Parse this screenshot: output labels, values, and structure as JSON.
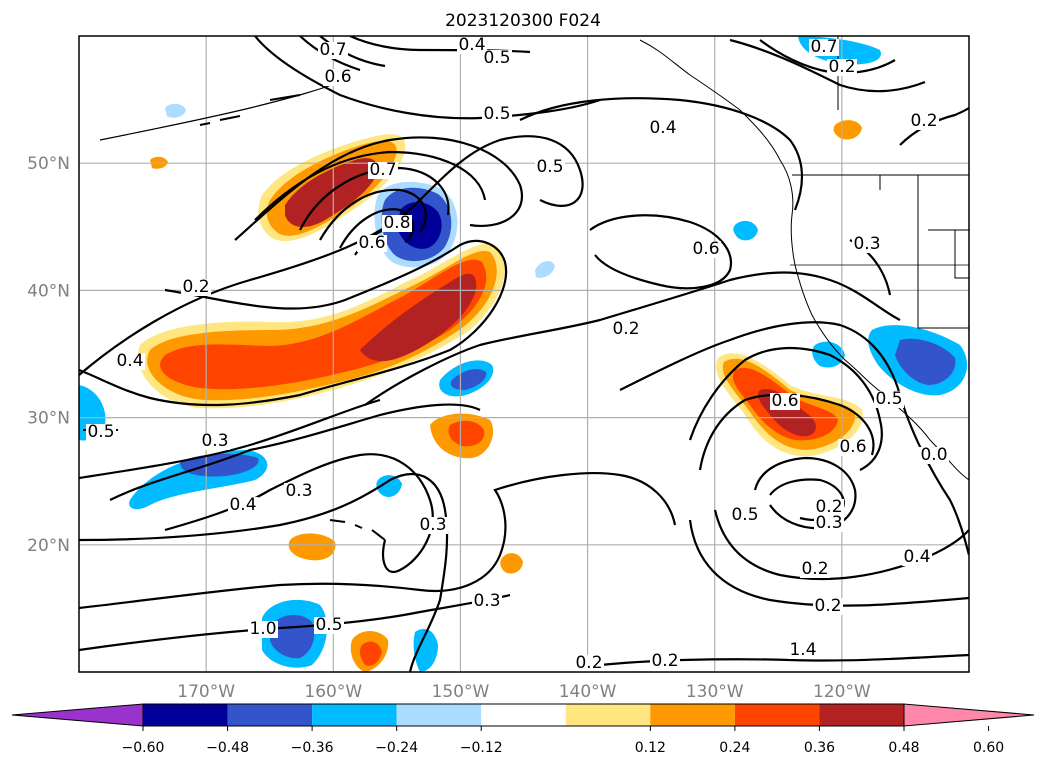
{
  "title": "2023120300 F024",
  "map": {
    "lon_range": [
      -180,
      -110
    ],
    "lat_range": [
      10,
      60
    ],
    "lon_ticks": [
      {
        "value": -170,
        "label": "170°W"
      },
      {
        "value": -160,
        "label": "160°W"
      },
      {
        "value": -150,
        "label": "150°W"
      },
      {
        "value": -140,
        "label": "140°W"
      },
      {
        "value": -130,
        "label": "130°W"
      },
      {
        "value": -120,
        "label": "120°W"
      }
    ],
    "lat_ticks": [
      {
        "value": 50,
        "label": "50°N"
      },
      {
        "value": 40,
        "label": "40°N"
      },
      {
        "value": 30,
        "label": "30°N"
      },
      {
        "value": 20,
        "label": "20°N"
      }
    ],
    "grid": true,
    "contour_labels": [
      "0.4",
      "0.5",
      "0.5",
      "0.7",
      "0.6",
      "0.4",
      "0.5",
      "0.7",
      "0.8",
      "0.6",
      "0.6",
      "0.3",
      "0.2",
      "0.4",
      "0.2",
      "0.3",
      "0.3",
      "0.4",
      "0.3",
      "0.3",
      "0.6",
      "0.6",
      "0.5",
      "0.2",
      "0.3",
      "0.5",
      "0.2",
      "0.4",
      "0.2",
      "0.2",
      "0.2",
      "1.4",
      "1.0",
      "0.5",
      "0.7",
      "0.2",
      "0.2",
      "0.5",
      "0.0"
    ]
  },
  "colorbar": {
    "ticks": [
      "−0.60",
      "−0.48",
      "−0.36",
      "−0.24",
      "−0.12",
      "0.12",
      "0.24",
      "0.36",
      "0.48",
      "0.60"
    ],
    "colors": [
      "#9933cc",
      "#000099",
      "#3355cc",
      "#00bbff",
      "#aaddff",
      "#ffffff",
      "#ffe680",
      "#ff9900",
      "#ff4400",
      "#b22222",
      "#ff88aa"
    ],
    "extend": "both"
  },
  "fills": [
    {
      "label": "positive-1",
      "color": "#ffe680"
    },
    {
      "label": "positive-2",
      "color": "#ff9900"
    },
    {
      "label": "positive-3",
      "color": "#ff4400"
    },
    {
      "label": "positive-4",
      "color": "#b22222"
    },
    {
      "label": "negative-1",
      "color": "#aaddff"
    },
    {
      "label": "negative-2",
      "color": "#00bbff"
    },
    {
      "label": "negative-3",
      "color": "#3355cc"
    },
    {
      "label": "negative-4",
      "color": "#000099"
    }
  ]
}
